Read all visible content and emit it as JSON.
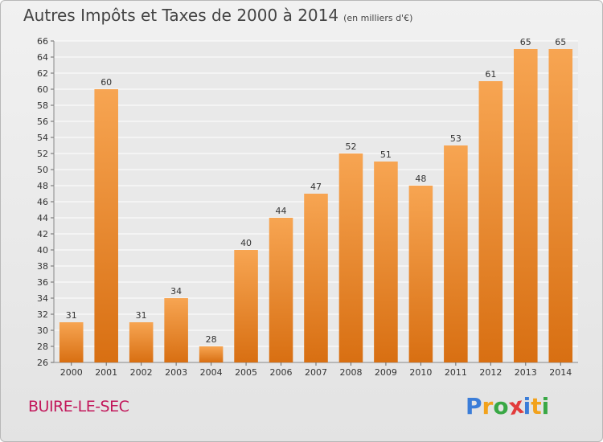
{
  "chart_data": {
    "type": "bar",
    "title": "Autres Impôts et Taxes de 2000 à 2014",
    "subtitle": "(en milliers d'€)",
    "categories": [
      "2000",
      "2001",
      "2002",
      "2003",
      "2004",
      "2005",
      "2006",
      "2007",
      "2008",
      "2009",
      "2010",
      "2011",
      "2012",
      "2013",
      "2014"
    ],
    "values": [
      31,
      60,
      31,
      34,
      28,
      40,
      44,
      47,
      52,
      51,
      48,
      53,
      61,
      65,
      65
    ],
    "ylim": [
      26,
      66
    ],
    "yticks": [
      26,
      28,
      30,
      32,
      34,
      36,
      38,
      40,
      42,
      44,
      46,
      48,
      50,
      52,
      54,
      56,
      58,
      60,
      62,
      64,
      66
    ],
    "grid": true,
    "bar_color": "#f0922e"
  },
  "commune": "BUIRE-LE-SEC",
  "logo": {
    "letters": [
      "P",
      "r",
      "o",
      "x",
      "i",
      "t",
      "i"
    ],
    "colors": [
      "#3b7dd8",
      "#f2a21c",
      "#39a845",
      "#e23b3b",
      "#3b7dd8",
      "#f2a21c",
      "#39a845"
    ]
  }
}
